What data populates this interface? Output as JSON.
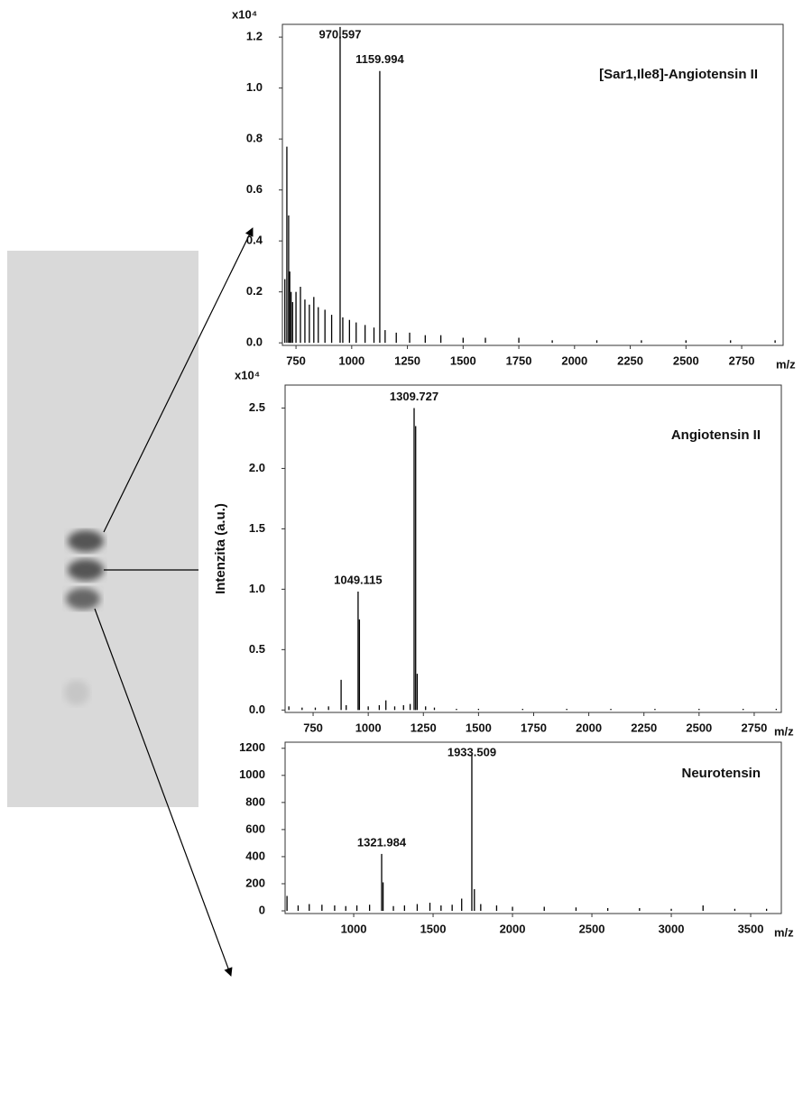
{
  "chart_data": [
    {
      "type": "stem",
      "title": "[Sar1,Ile8]-Angiotensin II",
      "x_label": "m/z",
      "y_scale": "x10⁴",
      "color": "#000000",
      "x": [
        700,
        709,
        717,
        722,
        728,
        735,
        750,
        770,
        790,
        810,
        830,
        850,
        880,
        910,
        948,
        960,
        990,
        1020,
        1060,
        1100,
        1126,
        1150,
        1200,
        1260,
        1330,
        1400,
        1500,
        1600,
        1750,
        1900,
        2100,
        2300,
        2500,
        2700,
        2900
      ],
      "values": [
        0.25,
        0.77,
        0.5,
        0.28,
        0.2,
        0.16,
        0.2,
        0.22,
        0.17,
        0.15,
        0.18,
        0.14,
        0.13,
        0.11,
        1.24,
        0.1,
        0.09,
        0.08,
        0.07,
        0.06,
        1.067,
        0.05,
        0.04,
        0.04,
        0.03,
        0.03,
        0.02,
        0.02,
        0.02,
        0.01,
        0.01,
        0.01,
        0.01,
        0.01,
        0.01
      ],
      "annotations": [
        {
          "text": "970.597",
          "x": 948,
          "y": 1.24
        },
        {
          "text": "1159.994",
          "x": 1126,
          "y": 1.067
        }
      ],
      "xlim": [
        689,
        2936
      ],
      "ylim": [
        -0.01,
        1.25
      ],
      "xticks": [
        750,
        1000,
        1250,
        1500,
        1750,
        2000,
        2250,
        2500,
        2750
      ],
      "yticks": [
        {
          "value": 0,
          "label": "0.0"
        },
        0.2,
        0.4,
        0.6,
        0.8,
        {
          "value": 1,
          "label": "1.0"
        },
        1.2
      ]
    },
    {
      "type": "stem",
      "title": "Angiotensin II",
      "x_label": "m/z",
      "y_label": "Intenzita (a.u.)",
      "y_scale": "x10⁴",
      "color": "#000000",
      "x": [
        640,
        700,
        760,
        820,
        877,
        900,
        954,
        960,
        1000,
        1050,
        1080,
        1120,
        1160,
        1190,
        1208,
        1215,
        1222,
        1260,
        1300,
        1400,
        1500,
        1700,
        1900,
        2100,
        2300,
        2500,
        2700,
        2850
      ],
      "values": [
        0.03,
        0.02,
        0.02,
        0.03,
        0.25,
        0.04,
        0.98,
        0.75,
        0.03,
        0.04,
        0.08,
        0.03,
        0.04,
        0.05,
        2.5,
        2.35,
        0.3,
        0.03,
        0.02,
        0.01,
        0.01,
        0.01,
        0.01,
        0.01,
        0.01,
        0.01,
        0.01,
        0.01
      ],
      "annotations": [
        {
          "text": "1309.727",
          "x": 1208,
          "y": 2.5
        },
        {
          "text": "1049.115",
          "x": 954,
          "y": 0.98
        }
      ],
      "xlim": [
        623,
        2873
      ],
      "ylim": [
        -0.02,
        2.69
      ],
      "xticks": [
        750,
        1000,
        1250,
        1500,
        1750,
        2000,
        2250,
        2500,
        2750
      ],
      "yticks": [
        {
          "value": 0,
          "label": "0.0"
        },
        0.5,
        {
          "value": 1,
          "label": "1.0"
        },
        1.5,
        {
          "value": 2,
          "label": "2.0"
        },
        2.5
      ]
    },
    {
      "type": "stem",
      "title": "Neurotensin",
      "x_label": "m/z",
      "color": "#000000",
      "x": [
        580,
        650,
        720,
        800,
        880,
        950,
        1020,
        1100,
        1176,
        1185,
        1250,
        1320,
        1400,
        1480,
        1550,
        1620,
        1680,
        1744,
        1760,
        1800,
        1900,
        2000,
        2200,
        2400,
        2600,
        2800,
        3000,
        3200,
        3400,
        3600
      ],
      "values": [
        110,
        40,
        50,
        45,
        40,
        35,
        40,
        45,
        420,
        210,
        35,
        40,
        50,
        60,
        40,
        45,
        90,
        1150,
        160,
        50,
        40,
        30,
        30,
        25,
        20,
        20,
        15,
        40,
        15,
        15
      ],
      "annotations": [
        {
          "text": "1933.509",
          "x": 1744,
          "y": 1150
        },
        {
          "text": "1321.984",
          "x": 1176,
          "y": 420
        }
      ],
      "xlim": [
        568,
        3693
      ],
      "ylim": [
        -20,
        1245
      ],
      "xticks": [
        1000,
        1500,
        2000,
        2500,
        3000,
        3500
      ],
      "yticks": [
        0,
        200,
        400,
        600,
        800,
        1000,
        1200
      ]
    }
  ]
}
